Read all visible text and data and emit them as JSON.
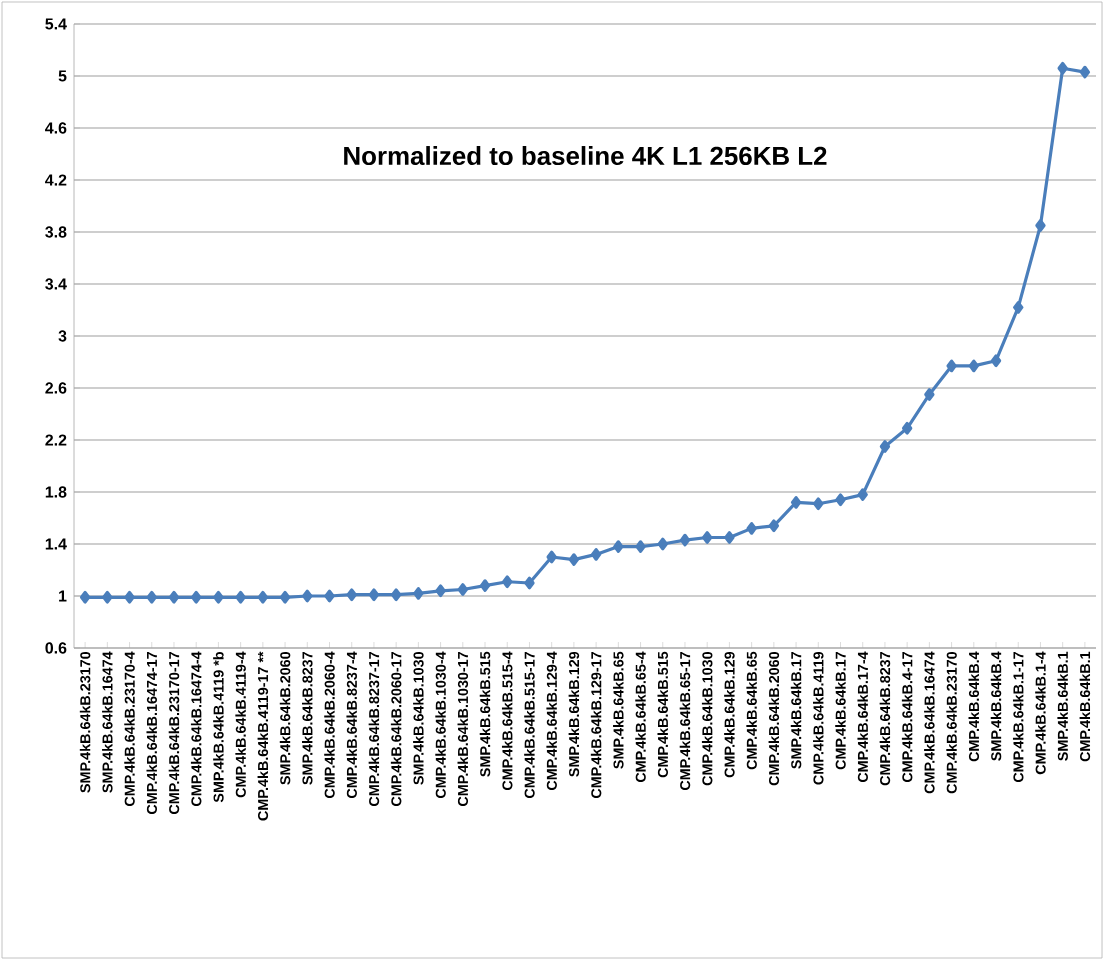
{
  "chart_data": {
    "type": "line",
    "title": "Normalized to baseline 4K L1 256KB L2",
    "categories": [
      "SMP.4kB.64kB.23170",
      "SMP.4kB.64kB.16474",
      "CMP.4kB.64kB.23170-4",
      "CMP.4kB.64kB.16474-17",
      "CMP.4kB.64kB.23170-17",
      "CMP.4kB.64kB.16474-4",
      "SMP.4kB.64kB.4119 *b",
      "CMP.4kB.64kB.4119-4",
      "CMP.4kB.64kB.4119-17 **",
      "SMP.4kB.64kB.2060",
      "SMP.4kB.64kB.8237",
      "CMP.4kB.64kB.2060-4",
      "CMP.4kB.64kB.8237-4",
      "CMP.4kB.64kB.8237-17",
      "CMP.4kB.64kB.2060-17",
      "SMP.4kB.64kB.1030",
      "CMP.4kB.64kB.1030-4",
      "CMP.4kB.64kB.1030-17",
      "SMP.4kB.64kB.515",
      "CMP.4kB.64kB.515-4",
      "CMP.4kB.64kB.515-17",
      "CMP.4kB.64kB.129-4",
      "SMP.4kB.64kB.129",
      "CMP.4kB.64kB.129-17",
      "SMP.4kB.64kB.65",
      "CMP.4kB.64kB.65-4",
      "CMP.4kB.64kB.515",
      "CMP.4kB.64kB.65-17",
      "CMP.4kB.64kB.1030",
      "CMP.4kB.64kB.129",
      "CMP.4kB.64kB.65",
      "CMP.4kB.64kB.2060",
      "SMP.4kB.64kB.17",
      "CMP.4kB.64kB.4119",
      "CMP.4kB.64kB.17",
      "CMP.4kB.64kB.17-4",
      "CMP.4kB.64kB.8237",
      "CMP.4kB.64kB.4-17",
      "CMP.4kB.64kB.16474",
      "CMP.4kB.64kB.23170",
      "CMP.4kB.64kB.4",
      "SMP.4kB.64kB.4",
      "CMP.4kB.64kB.1-17",
      "CMP.4kB.64kB.1-4",
      "SMP.4kB.64kB.1",
      "CMP.4kB.64kB.1"
    ],
    "series": [
      {
        "color": "#4a7ebb",
        "values": [
          0.99,
          0.99,
          0.99,
          0.99,
          0.99,
          0.99,
          0.99,
          0.99,
          0.99,
          0.99,
          1.0,
          1.0,
          1.01,
          1.01,
          1.01,
          1.02,
          1.04,
          1.05,
          1.08,
          1.11,
          1.1,
          1.3,
          1.28,
          1.32,
          1.38,
          1.38,
          1.4,
          1.43,
          1.45,
          1.45,
          1.52,
          1.54,
          1.72,
          1.71,
          1.74,
          1.78,
          2.15,
          2.29,
          2.55,
          2.77,
          2.77,
          2.81,
          3.22,
          3.85,
          5.06,
          5.03
        ]
      }
    ],
    "ylim": [
      0.6,
      5.4
    ],
    "yticks": [
      0.6,
      1,
      1.4,
      1.8,
      2.2,
      2.6,
      3,
      3.4,
      3.8,
      4.2,
      4.6,
      5,
      5.4
    ],
    "grid": "y",
    "marker": "diamond",
    "line_style": "solid"
  }
}
